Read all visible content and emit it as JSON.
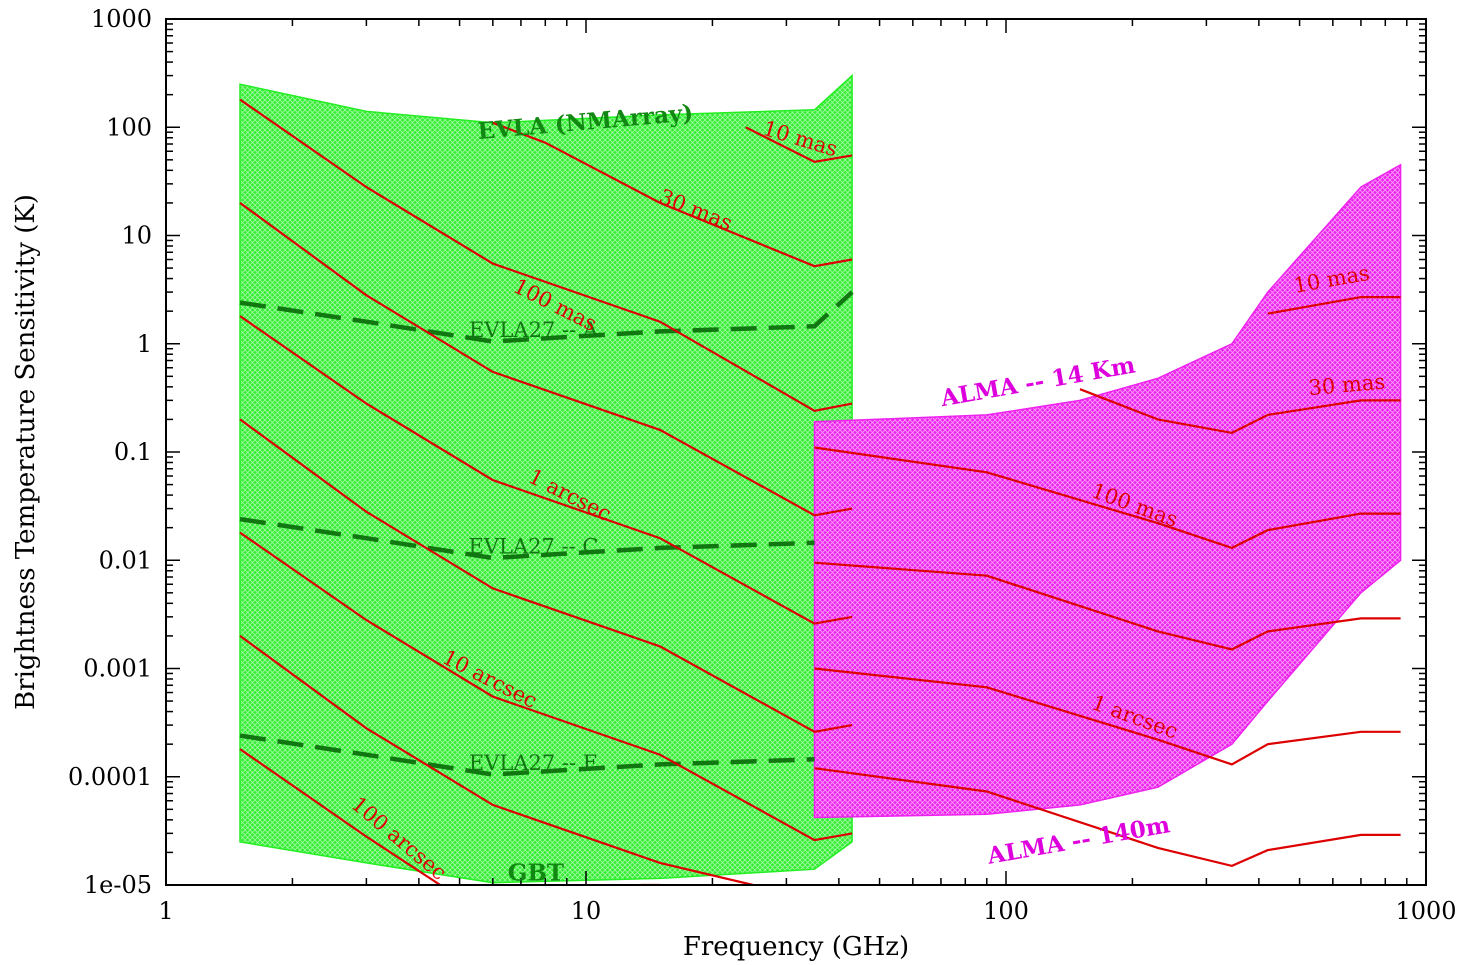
{
  "chart_data": {
    "type": "line",
    "title": "",
    "xlabel": "Frequency (GHz)",
    "ylabel": "Brightness Temperature Sensitivity (K)",
    "xscale": "log",
    "yscale": "log",
    "xlim": [
      1,
      1000
    ],
    "ylim": [
      1e-05,
      1000
    ],
    "x_tick_labels": [
      "1",
      "10",
      "100",
      "1000"
    ],
    "y_tick_labels": [
      "1e-05",
      "0.0001",
      "0.001",
      "0.01",
      "0.1",
      "1",
      "10",
      "100",
      "1000"
    ],
    "colors": {
      "evla_region": "#22ee22",
      "alma_region": "#ee22ee",
      "contour": "#dd0000",
      "evla27": "#117711",
      "evla_text": "#118811",
      "alma_text": "#dd00dd"
    },
    "regions": [
      {
        "name": "EVLA (NMArray)",
        "label": "EVLA (NMArray)",
        "color": "#22ee22",
        "upper": [
          [
            1.5,
            250
          ],
          [
            3,
            140
          ],
          [
            6,
            110
          ],
          [
            15,
            130
          ],
          [
            35,
            145
          ],
          [
            43,
            300
          ]
        ],
        "lower": [
          [
            1.5,
            2.5e-05
          ],
          [
            3,
            1.6e-05
          ],
          [
            6,
            1.05e-05
          ],
          [
            15,
            1.15e-05
          ],
          [
            35,
            1.4e-05
          ],
          [
            43,
            2.5e-05
          ]
        ]
      },
      {
        "name": "ALMA",
        "labels": [
          "ALMA -- 14 Km",
          "ALMA -- 140m"
        ],
        "color": "#ee22ee",
        "upper": [
          [
            35,
            0.19
          ],
          [
            90,
            0.22
          ],
          [
            150,
            0.3
          ],
          [
            230,
            0.48
          ],
          [
            345,
            1.0
          ],
          [
            420,
            3.0
          ],
          [
            700,
            28
          ],
          [
            870,
            45
          ]
        ],
        "lower": [
          [
            35,
            4.2e-05
          ],
          [
            90,
            4.5e-05
          ],
          [
            150,
            5.5e-05
          ],
          [
            230,
            8e-05
          ],
          [
            345,
            0.0002
          ],
          [
            420,
            0.0005
          ],
          [
            700,
            0.005
          ],
          [
            870,
            0.01
          ]
        ]
      }
    ],
    "evla_contours": [
      [
        [
          24,
          100
        ],
        [
          35,
          48
        ],
        [
          43,
          55
        ]
      ],
      [
        [
          6,
          110
        ],
        [
          8,
          72
        ],
        [
          15,
          20
        ],
        [
          35,
          5.2
        ],
        [
          43,
          6
        ]
      ],
      [
        [
          1.5,
          180
        ],
        [
          3,
          28
        ],
        [
          6,
          5.5
        ],
        [
          15,
          1.6
        ],
        [
          35,
          0.24
        ],
        [
          43,
          0.28
        ]
      ],
      [
        [
          1.5,
          20
        ],
        [
          3,
          2.8
        ],
        [
          6,
          0.55
        ],
        [
          15,
          0.16
        ],
        [
          35,
          0.026
        ],
        [
          43,
          0.03
        ]
      ],
      [
        [
          1.5,
          1.8
        ],
        [
          3,
          0.28
        ],
        [
          6,
          0.055
        ],
        [
          15,
          0.016
        ],
        [
          35,
          0.0026
        ],
        [
          43,
          0.003
        ]
      ],
      [
        [
          1.5,
          0.2
        ],
        [
          3,
          0.028
        ],
        [
          6,
          0.0055
        ],
        [
          15,
          0.0016
        ],
        [
          35,
          0.00026
        ],
        [
          43,
          0.0003
        ]
      ],
      [
        [
          1.5,
          0.018
        ],
        [
          3,
          0.0028
        ],
        [
          6,
          0.00055
        ],
        [
          15,
          0.00016
        ],
        [
          35,
          2.6e-05
        ],
        [
          43,
          3e-05
        ]
      ],
      [
        [
          1.5,
          0.002
        ],
        [
          3,
          0.00028
        ],
        [
          6,
          5.5e-05
        ],
        [
          15,
          1.6e-05
        ],
        [
          25,
          1e-05
        ]
      ],
      [
        [
          1.5,
          0.00018
        ],
        [
          3,
          2.8e-05
        ],
        [
          4.5,
          1e-05
        ]
      ],
      [
        [
          13.5,
          1e-05
        ],
        [
          15,
          1e-05
        ]
      ]
    ],
    "alma_contours": [
      [
        [
          420,
          1.9
        ],
        [
          700,
          2.7
        ],
        [
          870,
          2.7
        ]
      ],
      [
        [
          150,
          0.38
        ],
        [
          230,
          0.2
        ],
        [
          345,
          0.15
        ],
        [
          420,
          0.22
        ],
        [
          700,
          0.3
        ],
        [
          870,
          0.3
        ]
      ],
      [
        [
          35,
          0.11
        ],
        [
          90,
          0.065
        ],
        [
          230,
          0.022
        ],
        [
          345,
          0.013
        ],
        [
          420,
          0.019
        ],
        [
          700,
          0.027
        ],
        [
          870,
          0.027
        ]
      ],
      [
        [
          35,
          0.0095
        ],
        [
          90,
          0.0072
        ],
        [
          230,
          0.0022
        ],
        [
          345,
          0.0015
        ],
        [
          420,
          0.0022
        ],
        [
          700,
          0.0029
        ],
        [
          870,
          0.0029
        ]
      ],
      [
        [
          35,
          0.001
        ],
        [
          90,
          0.00067
        ],
        [
          230,
          0.00022
        ],
        [
          345,
          0.00013
        ],
        [
          420,
          0.0002
        ],
        [
          700,
          0.00026
        ],
        [
          870,
          0.00026
        ]
      ],
      [
        [
          35,
          0.00012
        ],
        [
          90,
          7.3e-05
        ],
        [
          230,
          2.2e-05
        ],
        [
          345,
          1.5e-05
        ],
        [
          420,
          2.1e-05
        ],
        [
          700,
          2.9e-05
        ],
        [
          870,
          2.9e-05
        ]
      ]
    ],
    "evla27_lines": [
      {
        "label": "EVLA27 -- A",
        "points": [
          [
            1.5,
            2.4
          ],
          [
            3,
            1.6
          ],
          [
            6,
            1.05
          ],
          [
            15,
            1.3
          ],
          [
            35,
            1.45
          ],
          [
            43,
            3.0
          ]
        ]
      },
      {
        "label": "EVLA27 -- C",
        "points": [
          [
            1.5,
            0.024
          ],
          [
            3,
            0.016
          ],
          [
            6,
            0.0105
          ],
          [
            15,
            0.013
          ],
          [
            35,
            0.0145
          ]
        ]
      },
      {
        "label": "EVLA27 -- E",
        "points": [
          [
            1.5,
            0.00024
          ],
          [
            3,
            0.00016
          ],
          [
            6,
            0.000105
          ],
          [
            15,
            0.00013
          ],
          [
            35,
            0.000145
          ]
        ]
      }
    ],
    "annotations": [
      {
        "text": "EVLA (NMArray)",
        "x": 10,
        "y": 95,
        "rotate": -5,
        "color": "#118811",
        "bold": true
      },
      {
        "text": "GBT",
        "x": 7.6,
        "y": 1.1e-05,
        "rotate": 0,
        "color": "#118811",
        "bold": true
      },
      {
        "text": "EVLA27 -- A",
        "x": 7.5,
        "y": 1.15,
        "rotate": 0,
        "color": "#117711",
        "bold": false
      },
      {
        "text": "EVLA27 -- C",
        "x": 7.5,
        "y": 0.0115,
        "rotate": 0,
        "color": "#117711",
        "bold": false
      },
      {
        "text": "EVLA27 -- E",
        "x": 7.5,
        "y": 0.000115,
        "rotate": 0,
        "color": "#117711",
        "bold": false
      },
      {
        "text": "10 mas",
        "x": 32,
        "y": 68,
        "rotate": 17,
        "color": "#dd0000",
        "bold": false
      },
      {
        "text": "30 mas",
        "x": 18,
        "y": 15,
        "rotate": 22,
        "color": "#dd0000",
        "bold": false
      },
      {
        "text": "100 mas",
        "x": 8.3,
        "y": 2.0,
        "rotate": 27,
        "color": "#dd0000",
        "bold": false
      },
      {
        "text": "1 arcsec",
        "x": 9.0,
        "y": 0.035,
        "rotate": 27,
        "color": "#dd0000",
        "bold": false
      },
      {
        "text": "10 arcsec",
        "x": 5.8,
        "y": 0.0007,
        "rotate": 27,
        "color": "#dd0000",
        "bold": false
      },
      {
        "text": "100 arcsec",
        "x": 3.5,
        "y": 2.4e-05,
        "rotate": 40,
        "color": "#dd0000",
        "bold": false
      },
      {
        "text": "ALMA -- 14 Km",
        "x": 120,
        "y": 0.38,
        "rotate": -10,
        "color": "#dd00dd",
        "bold": true
      },
      {
        "text": "ALMA -- 140m",
        "x": 150,
        "y": 2.2e-05,
        "rotate": -10,
        "color": "#dd00dd",
        "bold": true
      },
      {
        "text": "10 mas",
        "x": 600,
        "y": 3.4,
        "rotate": -10,
        "color": "#dd0000",
        "bold": false
      },
      {
        "text": "30 mas",
        "x": 650,
        "y": 0.36,
        "rotate": -5,
        "color": "#dd0000",
        "bold": false
      },
      {
        "text": "100 mas",
        "x": 200,
        "y": 0.028,
        "rotate": 20,
        "color": "#dd0000",
        "bold": false
      },
      {
        "text": "1 arcsec",
        "x": 200,
        "y": 0.00031,
        "rotate": 20,
        "color": "#dd0000",
        "bold": false
      }
    ]
  }
}
